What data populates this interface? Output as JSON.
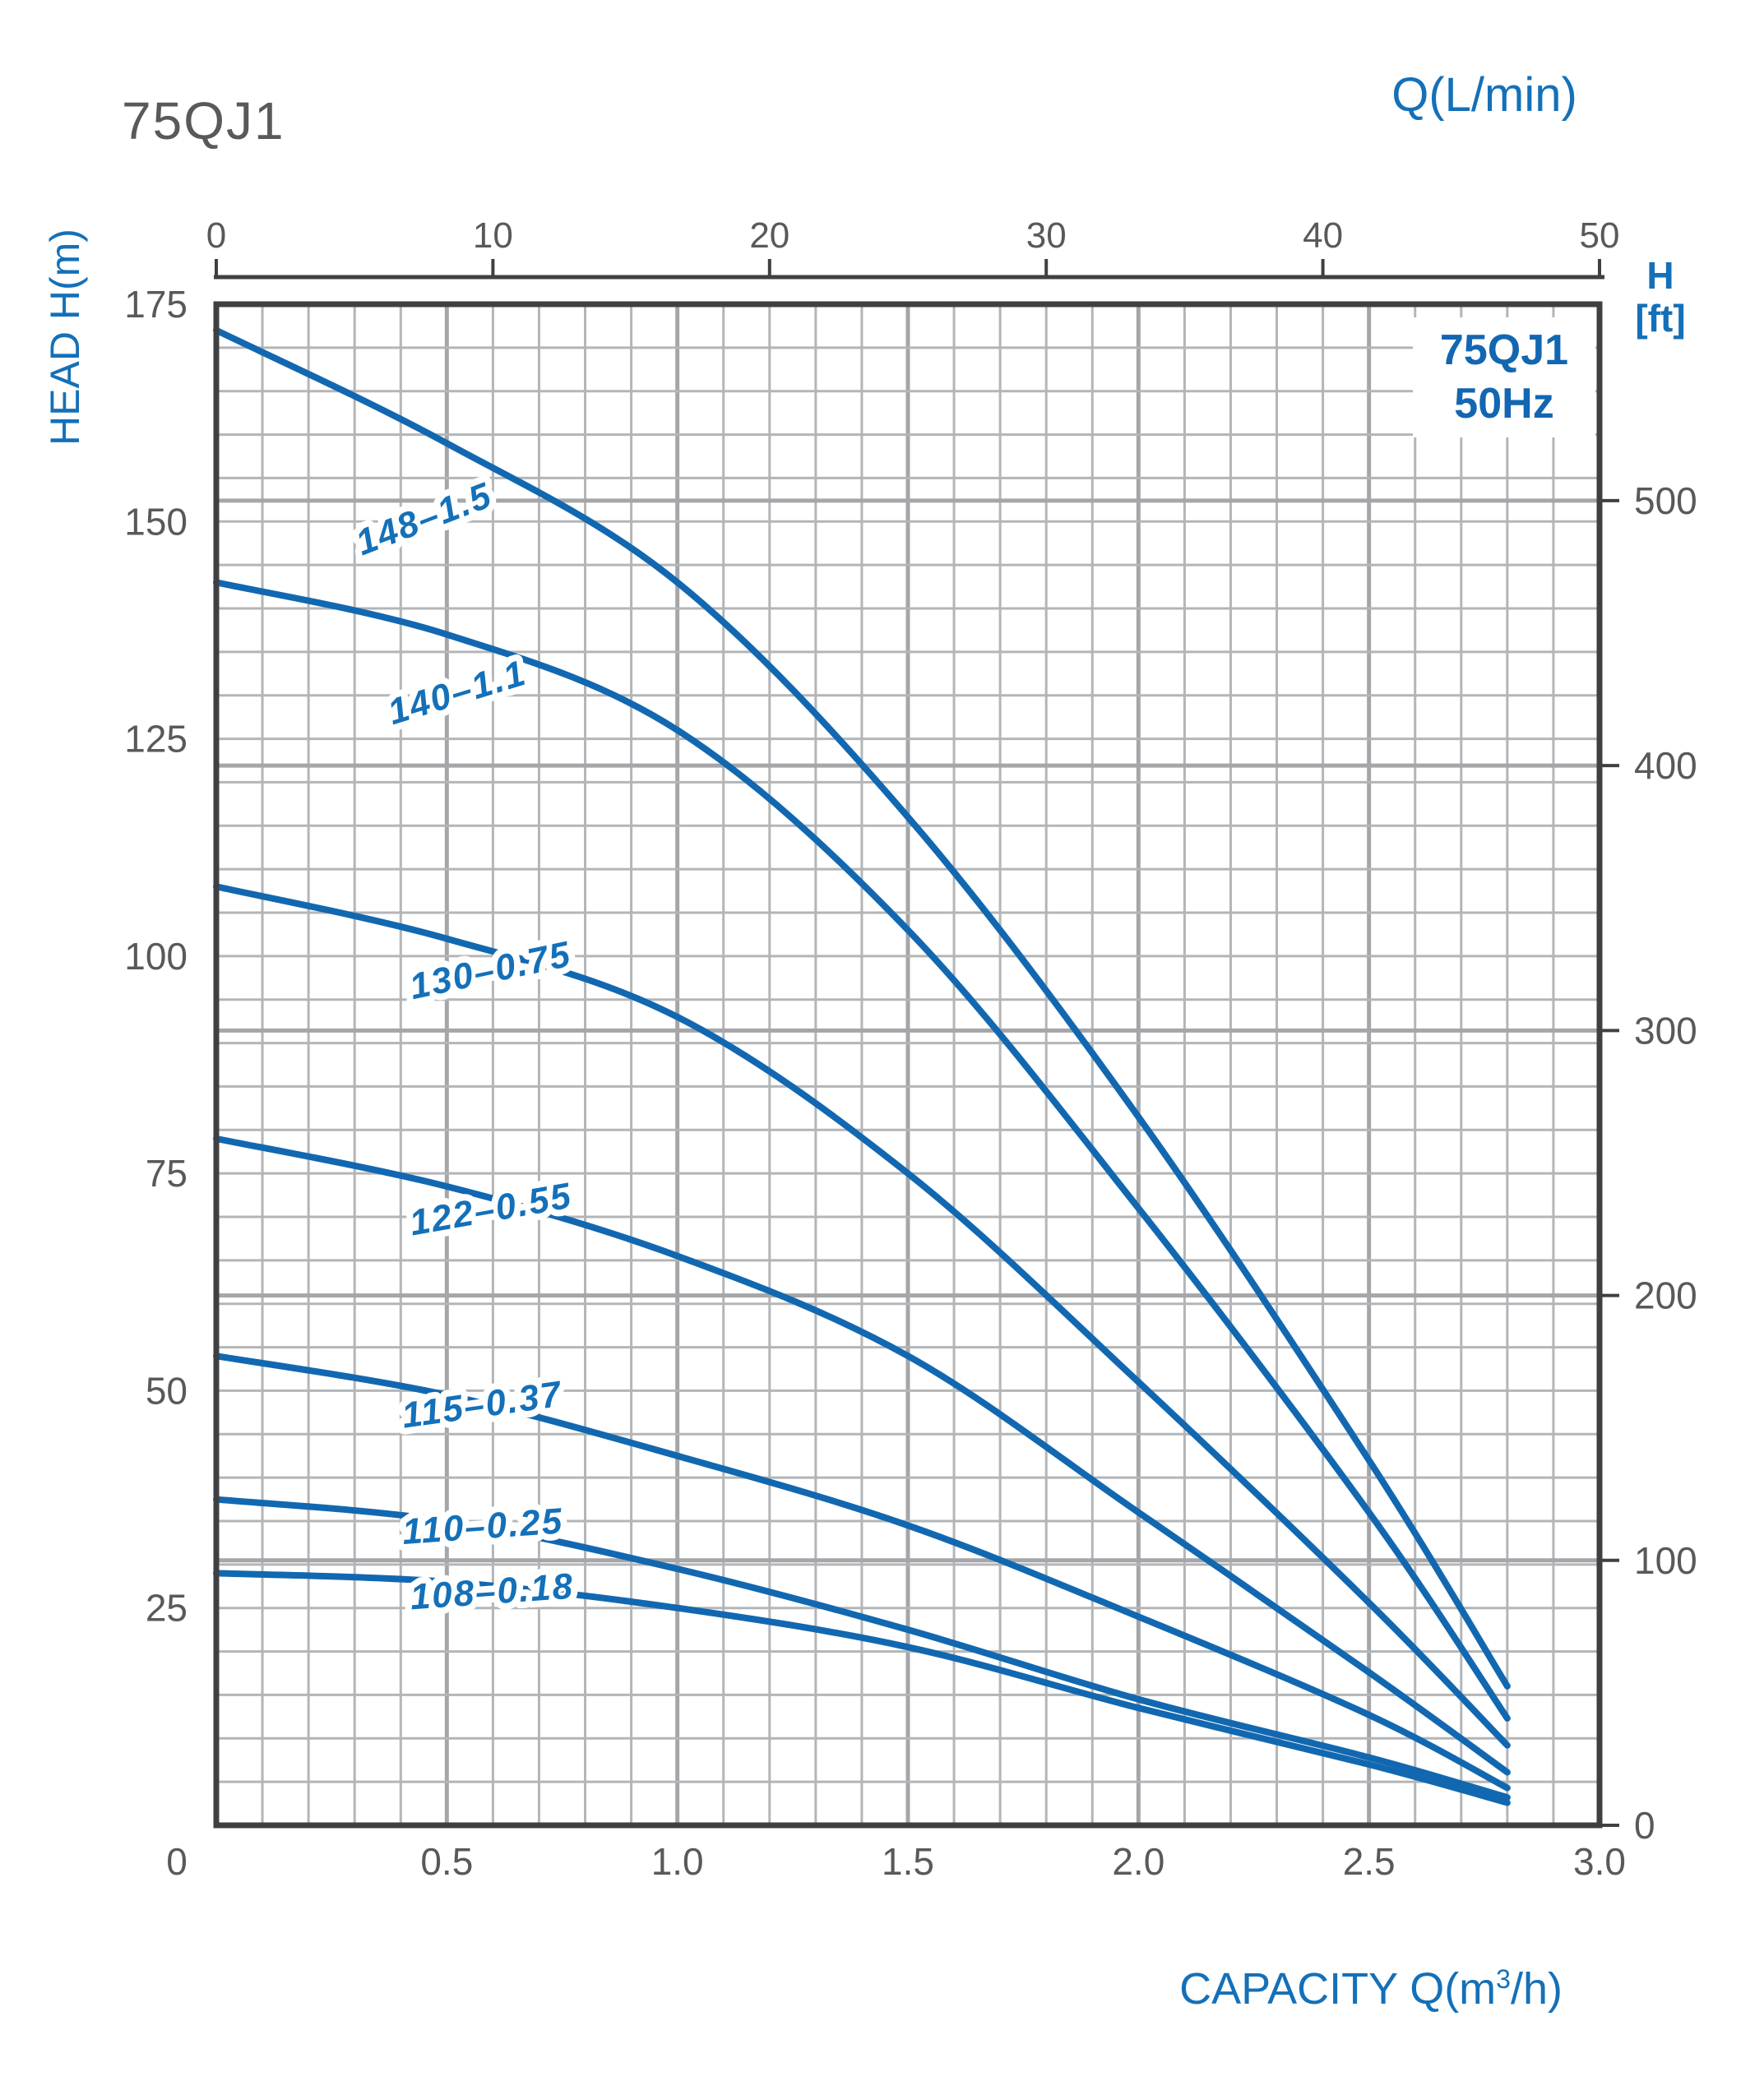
{
  "page": {
    "title": "75QJ1"
  },
  "labels": {
    "top_axis_unit": "Q(L/min)",
    "left_axis": "HEAD H(m)",
    "right_axis_line1": "H",
    "right_axis_line2": "[ft]",
    "bottom_axis_prefix": "CAPACITY Q(m",
    "bottom_axis_sup": "3",
    "bottom_axis_suffix": "/h)",
    "legend_line1": "75QJ1",
    "legend_line2": "50Hz"
  },
  "chart_data": {
    "type": "line",
    "title": "75QJ1 50Hz submersible pump head-capacity curves",
    "x_axis_bottom": {
      "label": "CAPACITY Q(m3/h)",
      "range": [
        0,
        3.0
      ],
      "ticks": [
        0,
        0.5,
        1.0,
        1.5,
        2.0,
        2.5,
        3.0
      ],
      "tick_labels": [
        "0",
        "0.5",
        "1.0",
        "1.5",
        "2.0",
        "2.5",
        "3.0"
      ],
      "minor_step": 0.1,
      "major_step": 0.5
    },
    "x_axis_top": {
      "label": "Q(L/min)",
      "range": [
        0,
        50
      ],
      "ticks": [
        0,
        10,
        20,
        30,
        40,
        50
      ]
    },
    "y_axis_left": {
      "label": "HEAD H(m)",
      "range": [
        0,
        175
      ],
      "ticks": [
        25,
        50,
        75,
        100,
        125,
        150,
        175
      ],
      "minor_step": 5
    },
    "y_axis_right": {
      "label": "H [ft]",
      "ticks_ft": [
        0,
        100,
        200,
        300,
        400,
        500
      ],
      "m_per_ft": 0.3048
    },
    "grid": true,
    "legend": {
      "position": "top-right",
      "lines": [
        "75QJ1",
        "50Hz"
      ]
    },
    "series": [
      {
        "name": "148-1.5",
        "label": "148–1.5",
        "points": [
          [
            0,
            172
          ],
          [
            0.5,
            159
          ],
          [
            1.0,
            143
          ],
          [
            1.5,
            116
          ],
          [
            2.0,
            81.5
          ],
          [
            2.5,
            42
          ],
          [
            2.8,
            16
          ]
        ],
        "label_pos": {
          "q": 0.46,
          "h": 149,
          "rot": -21
        }
      },
      {
        "name": "140-1.1",
        "label": "140–1.1",
        "points": [
          [
            0,
            143
          ],
          [
            0.5,
            137
          ],
          [
            1.0,
            126
          ],
          [
            1.5,
            103
          ],
          [
            2.0,
            71
          ],
          [
            2.5,
            36
          ],
          [
            2.8,
            12.3
          ]
        ],
        "label_pos": {
          "q": 0.53,
          "h": 129,
          "rot": -17
        }
      },
      {
        "name": "130-0.75",
        "label": "130–0.75",
        "points": [
          [
            0,
            108
          ],
          [
            0.5,
            102
          ],
          [
            1.0,
            93
          ],
          [
            1.5,
            75
          ],
          [
            2.0,
            51
          ],
          [
            2.5,
            25.6
          ],
          [
            2.8,
            9.2
          ]
        ],
        "label_pos": {
          "q": 0.6,
          "h": 97,
          "rot": -12
        }
      },
      {
        "name": "122-0.55",
        "label": "122–0.55",
        "points": [
          [
            0,
            79
          ],
          [
            0.5,
            73.5
          ],
          [
            1.0,
            65.5
          ],
          [
            1.5,
            54
          ],
          [
            2.0,
            36
          ],
          [
            2.5,
            17.6
          ],
          [
            2.8,
            6.1
          ]
        ],
        "label_pos": {
          "q": 0.6,
          "h": 69.5,
          "rot": -10
        }
      },
      {
        "name": "115-0.37",
        "label": "115–0.37",
        "points": [
          [
            0,
            54
          ],
          [
            0.5,
            49.5
          ],
          [
            1.0,
            42.5
          ],
          [
            1.5,
            34.5
          ],
          [
            2.0,
            24
          ],
          [
            2.5,
            12.7
          ],
          [
            2.8,
            4.3
          ]
        ],
        "label_pos": {
          "q": 0.58,
          "h": 47,
          "rot": -8
        }
      },
      {
        "name": "110-0.25",
        "label": "110–0.25",
        "points": [
          [
            0,
            37.5
          ],
          [
            0.5,
            35
          ],
          [
            1.0,
            29.5
          ],
          [
            1.5,
            22.5
          ],
          [
            2.0,
            14.5
          ],
          [
            2.5,
            7.8
          ],
          [
            2.8,
            3.2
          ]
        ],
        "label_pos": {
          "q": 0.58,
          "h": 33,
          "rot": -4
        }
      },
      {
        "name": "108-0.18",
        "label": "108–0.18",
        "points": [
          [
            0,
            29
          ],
          [
            0.5,
            28
          ],
          [
            1.0,
            25
          ],
          [
            1.5,
            20.5
          ],
          [
            2.0,
            13.5
          ],
          [
            2.5,
            7.0
          ],
          [
            2.8,
            2.6
          ]
        ],
        "label_pos": {
          "q": 0.6,
          "h": 25.5,
          "rot": -4
        }
      }
    ],
    "colors": {
      "curve": "#1268b0",
      "curve_label_text": "#1470b8",
      "axis_text": "#58595b",
      "frame": "#3f4042",
      "grid_minor": "#b3b5b7",
      "grid_major": "#a4a6a9"
    }
  }
}
